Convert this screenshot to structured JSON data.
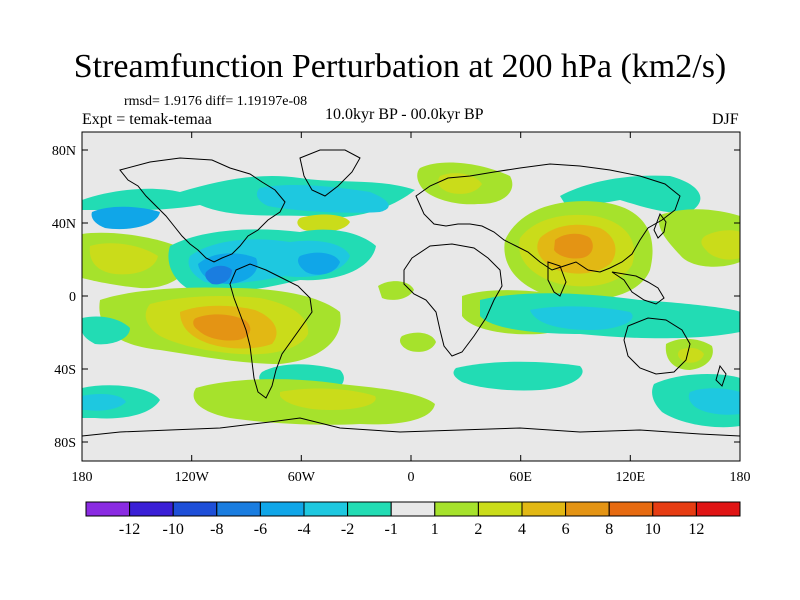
{
  "title": "Streamfunction Perturbation at 200 hPa (km2/s)",
  "stats_text": "rmsd= 1.9176  diff= 1.19197e-08",
  "left_label": "Expt = temak-temaa",
  "center_label": "10.0kyr BP - 00.0kyr BP",
  "right_label": "DJF",
  "y_ticks": [
    "80N",
    "40N",
    "0",
    "40S",
    "80S"
  ],
  "x_ticks": [
    "180",
    "120W",
    "60W",
    "0",
    "60E",
    "120E",
    "180"
  ],
  "colorbar": {
    "labels": [
      "-12",
      "-10",
      "-8",
      "-6",
      "-4",
      "-2",
      "-1",
      "1",
      "2",
      "4",
      "6",
      "8",
      "10",
      "12"
    ],
    "colors": [
      "#8a2be2",
      "#3a1fd6",
      "#1e4fd8",
      "#1a7de0",
      "#10a6e8",
      "#1ec8e0",
      "#22dcb4",
      "#e8e8e8",
      "#a6e22c",
      "#cadc1a",
      "#e2b814",
      "#e49414",
      "#e66a10",
      "#e63c12",
      "#e01414"
    ]
  },
  "palette": {
    "cyan1": "#22dcb4",
    "cyan2": "#1ec8e0",
    "blue1": "#10a6e8",
    "blue2": "#1a7de0",
    "green": "#a6e22c",
    "olive": "#cadc1a",
    "yellow": "#e2b814",
    "orange": "#e49414",
    "red": "#e66a10"
  }
}
